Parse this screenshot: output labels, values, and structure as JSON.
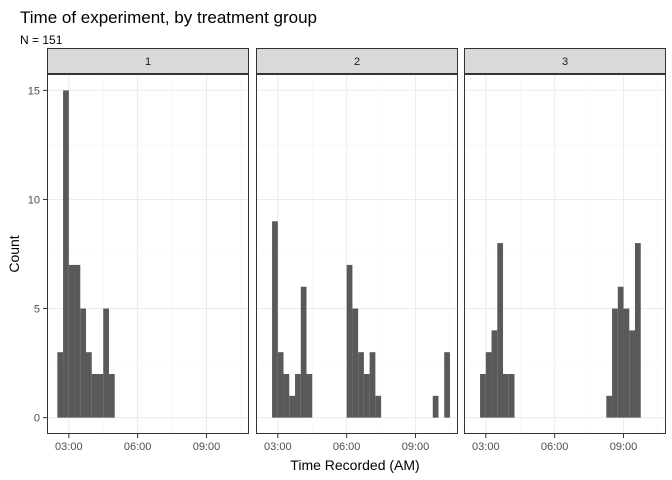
{
  "chart_data": {
    "type": "histogram",
    "title": "Time of experiment, by treatment group",
    "subtitle": "N = 151",
    "xlabel": "Time Recorded (AM)",
    "ylabel": "Count",
    "x_unit": "hours",
    "xlim": [
      2.05,
      10.85
    ],
    "ylim": [
      -0.75,
      15.75
    ],
    "x_ticks": [
      3,
      6,
      9
    ],
    "x_tick_labels": [
      "03:00",
      "06:00",
      "09:00"
    ],
    "y_ticks": [
      0,
      5,
      10,
      15
    ],
    "y_tick_labels": [
      "0",
      "5",
      "10",
      "15"
    ],
    "bin_width": 0.25,
    "colors": {
      "bar": "#595959",
      "panel_border": "#333333",
      "strip_fill": "#d9d9d9",
      "grid_major": "#ebebeb",
      "grid_minor": "#f5f5f5"
    },
    "facets": [
      {
        "label": "1",
        "bins": [
          {
            "start": 2.5,
            "count": 3
          },
          {
            "start": 2.75,
            "count": 15
          },
          {
            "start": 3.0,
            "count": 7
          },
          {
            "start": 3.25,
            "count": 7
          },
          {
            "start": 3.5,
            "count": 5
          },
          {
            "start": 3.75,
            "count": 3
          },
          {
            "start": 4.0,
            "count": 2
          },
          {
            "start": 4.25,
            "count": 2
          },
          {
            "start": 4.5,
            "count": 5
          },
          {
            "start": 4.75,
            "count": 2
          }
        ]
      },
      {
        "label": "2",
        "bins": [
          {
            "start": 2.75,
            "count": 9
          },
          {
            "start": 3.0,
            "count": 3
          },
          {
            "start": 3.25,
            "count": 2
          },
          {
            "start": 3.5,
            "count": 1
          },
          {
            "start": 3.75,
            "count": 2
          },
          {
            "start": 4.0,
            "count": 6
          },
          {
            "start": 4.25,
            "count": 2
          },
          {
            "start": 6.0,
            "count": 7
          },
          {
            "start": 6.25,
            "count": 5
          },
          {
            "start": 6.5,
            "count": 3
          },
          {
            "start": 6.75,
            "count": 2
          },
          {
            "start": 7.0,
            "count": 3
          },
          {
            "start": 7.25,
            "count": 1
          },
          {
            "start": 9.75,
            "count": 1
          },
          {
            "start": 10.25,
            "count": 3
          }
        ]
      },
      {
        "label": "3",
        "bins": [
          {
            "start": 2.75,
            "count": 2
          },
          {
            "start": 3.0,
            "count": 3
          },
          {
            "start": 3.25,
            "count": 4
          },
          {
            "start": 3.5,
            "count": 8
          },
          {
            "start": 3.75,
            "count": 2
          },
          {
            "start": 4.0,
            "count": 2
          },
          {
            "start": 8.25,
            "count": 1
          },
          {
            "start": 8.5,
            "count": 5
          },
          {
            "start": 8.75,
            "count": 6
          },
          {
            "start": 9.0,
            "count": 5
          },
          {
            "start": 9.25,
            "count": 4
          },
          {
            "start": 9.5,
            "count": 8
          }
        ]
      }
    ]
  }
}
